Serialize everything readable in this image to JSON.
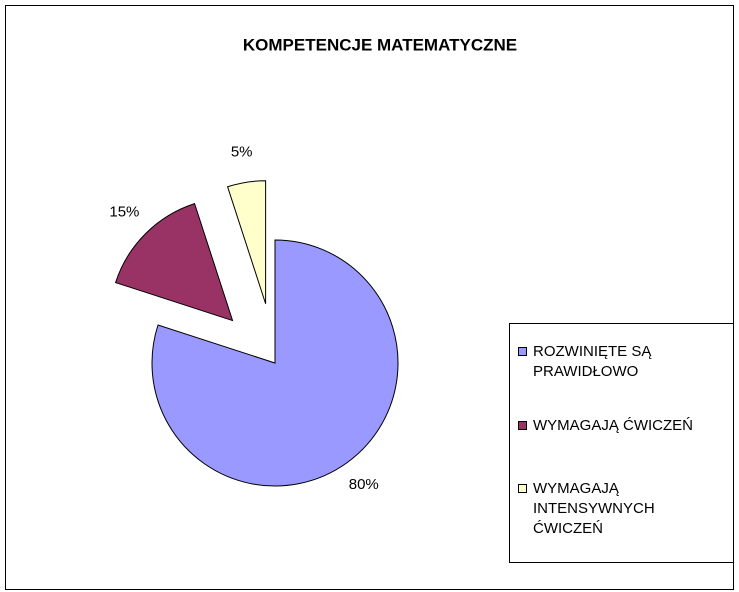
{
  "chart_data": {
    "type": "pie",
    "title": "KOMPETENCJE MATEMATYCZNE",
    "categories": [
      "ROZWINIĘTE SĄ PRAWIDŁOWO",
      "WYMAGAJĄ ĆWICZEŃ",
      "WYMAGAJĄ INTENSYWNYCH ĆWICZEŃ"
    ],
    "values": [
      80,
      15,
      5
    ],
    "value_labels": [
      "80%",
      "15%",
      "5%"
    ],
    "colors": [
      "#9999ff",
      "#993366",
      "#ffffcc"
    ],
    "legend": "right"
  }
}
